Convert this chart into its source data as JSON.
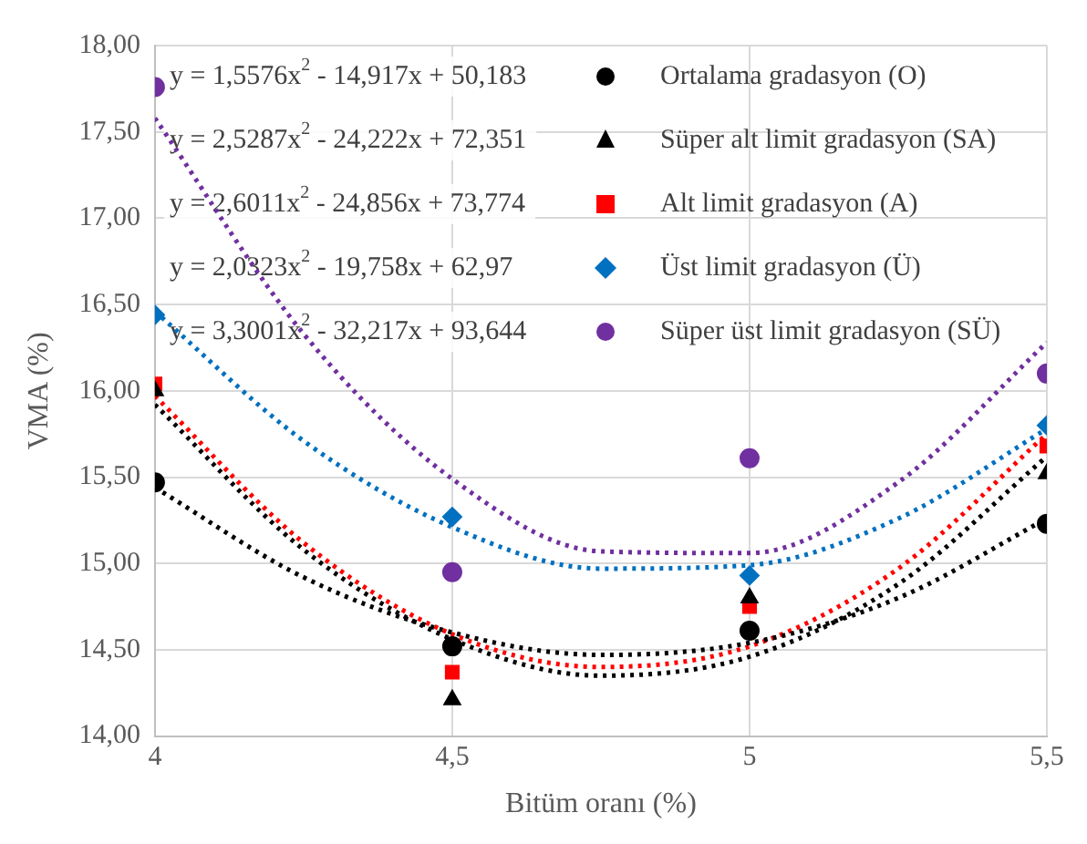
{
  "chart_data": {
    "type": "scatter",
    "xlabel": "Bitüm oranı (%)",
    "ylabel": "VMA (%)",
    "xlim": [
      4,
      5.5
    ],
    "xticks": [
      4,
      {
        "value": 4.5,
        "label": "4,5"
      },
      5,
      {
        "value": 5.5,
        "label": "5,5"
      }
    ],
    "ylim": [
      14,
      18
    ],
    "yticks": [
      {
        "value": 14,
        "label": "14,00"
      },
      {
        "value": 14.5,
        "label": "14,50"
      },
      {
        "value": 15,
        "label": "15,00"
      },
      {
        "value": 15.5,
        "label": "15,50"
      },
      {
        "value": 16,
        "label": "16,00"
      },
      {
        "value": 16.5,
        "label": "16,50"
      },
      {
        "value": 17,
        "label": "17,00"
      },
      {
        "value": 17.5,
        "label": "17,50"
      },
      {
        "value": 18,
        "label": "18,00"
      }
    ],
    "grid": true,
    "legend": "top right",
    "annotations": [
      "y = 1,5576x$^{2}$ - 14,917x + 50,183",
      "y = 2,5287x$^{2}$ - 24,222x + 72,351",
      "y = 2,6011x$^{2}$ - 24,856x + 73,774",
      "y = 2,0323x$^{2}$ - 19,758x + 62,97",
      "y = 3,3001x$^{2}$ - 32,217x + 93,644"
    ],
    "series": [
      {
        "name": "Ortalama gradasyon (O)",
        "type": "scatter",
        "marker": "circle",
        "color": "#000000",
        "x": [
          4,
          4.5,
          5,
          5.5
        ],
        "values": [
          15.47,
          14.52,
          14.61,
          15.23
        ]
      },
      {
        "name": "Süper alt limit gradasyon (SA)",
        "type": "scatter",
        "marker": "triangle",
        "color": "#000000",
        "x": [
          4,
          4.5,
          5,
          5.5
        ],
        "values": [
          16.0,
          14.21,
          14.8,
          15.52
        ]
      },
      {
        "name": "Alt limit gradasyon (A)",
        "type": "scatter",
        "marker": "square",
        "color": "#ff0000",
        "x": [
          4,
          4.5,
          5,
          5.5
        ],
        "values": [
          16.04,
          14.37,
          14.75,
          15.68
        ]
      },
      {
        "name": "Üst limit gradasyon (Ü)",
        "type": "scatter",
        "marker": "diamond",
        "color": "#0070c0",
        "x": [
          4,
          4.5,
          5,
          5.5
        ],
        "values": [
          16.44,
          15.27,
          14.93,
          15.8
        ]
      },
      {
        "name": "Süper üst limit gradasyon (SÜ)",
        "type": "scatter",
        "marker": "circle",
        "color": "#7030a0",
        "x": [
          4,
          4.5,
          5,
          5.5
        ],
        "values": [
          17.76,
          14.95,
          15.61,
          16.1
        ]
      },
      {
        "type": "line",
        "line_style": "dotted",
        "marker": "none",
        "color": "#000000",
        "x": [
          4,
          4.25,
          4.5,
          4.75,
          5,
          5.25,
          5.5
        ],
        "values": [
          15.44,
          14.92,
          14.6,
          14.47,
          14.54,
          14.8,
          15.26
        ]
      },
      {
        "type": "line",
        "line_style": "dotted",
        "marker": "none",
        "color": "#000000",
        "x": [
          4,
          4.25,
          4.5,
          4.75,
          5,
          5.25,
          5.5
        ],
        "values": [
          15.92,
          15.08,
          14.56,
          14.35,
          14.46,
          14.88,
          15.62
        ]
      },
      {
        "type": "line",
        "line_style": "dotted",
        "marker": "none",
        "color": "#ff0000",
        "x": [
          4,
          4.25,
          4.5,
          4.75,
          5,
          5.25,
          5.5
        ],
        "values": [
          15.97,
          15.12,
          14.59,
          14.4,
          14.52,
          14.97,
          15.75
        ]
      },
      {
        "type": "line",
        "line_style": "dotted",
        "marker": "none",
        "color": "#0070c0",
        "x": [
          4,
          4.25,
          4.5,
          4.75,
          5,
          5.25,
          5.5
        ],
        "values": [
          16.46,
          15.71,
          15.21,
          14.97,
          14.99,
          15.26,
          15.78
        ]
      },
      {
        "type": "line",
        "line_style": "dotted",
        "marker": "none",
        "color": "#7030a0",
        "x": [
          4,
          4.25,
          4.5,
          4.75,
          5,
          5.25,
          5.5
        ],
        "values": [
          17.58,
          16.33,
          15.49,
          15.07,
          15.06,
          15.47,
          16.28
        ]
      }
    ]
  }
}
